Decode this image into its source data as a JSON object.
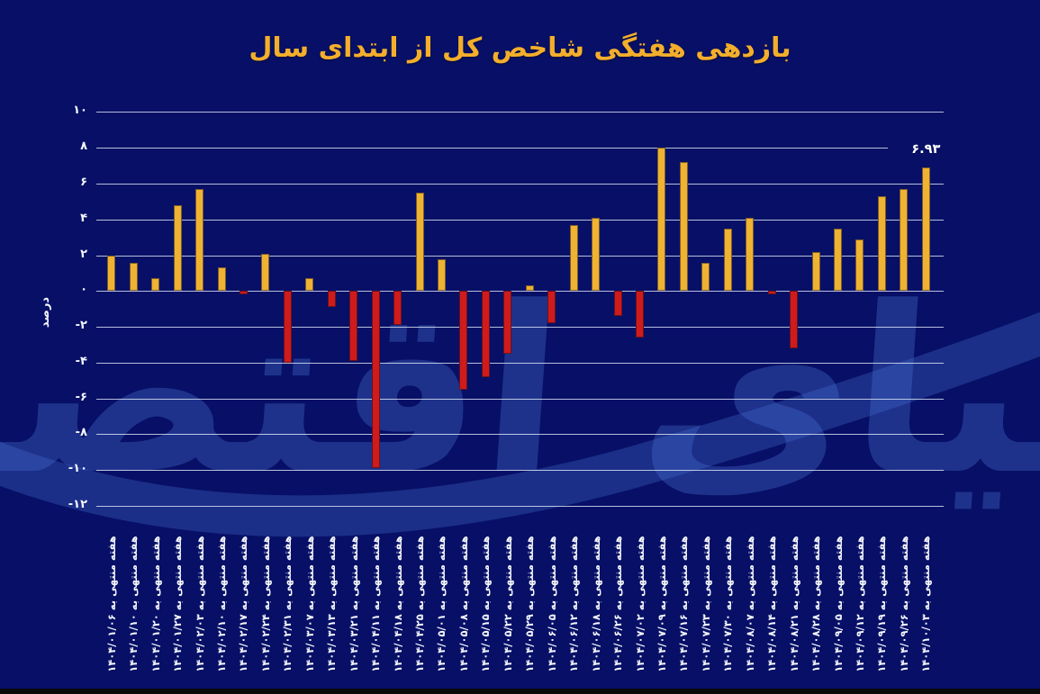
{
  "page": {
    "background_color": "#071066",
    "bottom_bar_color": "#0a0a0a"
  },
  "title": {
    "text": "بازدهی هفتگی شاخص کل از ابتدای سال",
    "color": "#f3ae2c"
  },
  "watermark": {
    "text": "دنیای اقتصاد"
  },
  "chart_data": {
    "type": "bar",
    "title": "بازدهی هفتگی شاخص کل از ابتدای سال",
    "xlabel": "",
    "ylabel": "درصد",
    "ylim": [
      -12,
      10
    ],
    "grid": true,
    "legend": "none",
    "positive_color": "#efb233",
    "negative_color": "#cf1b1b",
    "yticks": [
      {
        "label": "۱۰",
        "value": 10
      },
      {
        "label": "۸",
        "value": 8
      },
      {
        "label": "۶",
        "value": 6
      },
      {
        "label": "۴",
        "value": 4
      },
      {
        "label": "۲",
        "value": 2
      },
      {
        "label": "۰",
        "value": 0
      },
      {
        "label": "-۲",
        "value": -2
      },
      {
        "label": "-۴",
        "value": -4
      },
      {
        "label": "-۶",
        "value": -6
      },
      {
        "label": "-۸",
        "value": -8
      },
      {
        "label": "-۱۰",
        "value": -10
      },
      {
        "label": "-۱۲",
        "value": -12
      }
    ],
    "categories": [
      "هفته منتهی به ۱۴۰۴/۰۱/۰۶",
      "هفته منتهی به ۱۴۰۴/۰۱/۱۰",
      "هفته منتهی به ۱۴۰۴/۰۱/۲۰",
      "هفته منتهی به ۱۴۰۴/۰۱/۲۷",
      "هفته منتهی به ۱۴۰۴/۰۲/۰۳",
      "هفته منتهی به ۱۴۰۴/۰۲/۱۰",
      "هفته منتهی به ۱۴۰۴/۰۲/۱۷",
      "هفته منتهی به ۱۴۰۴/۰۲/۲۴",
      "هفته منتهی به ۱۴۰۴/۰۲/۳۱",
      "هفته منتهی به ۱۴۰۴/۰۳/۰۷",
      "هفته منتهی به ۱۴۰۴/۰۳/۱۳",
      "هفته منتهی به ۱۴۰۴/۰۳/۲۱",
      "هفته منتهی به ۱۴۰۴/۰۴/۱۱",
      "هفته منتهی به ۱۴۰۴/۰۴/۱۸",
      "هفته منتهی به ۱۴۰۴/۰۴/۲۵",
      "هفته منتهی به ۱۴۰۴/۰۵/۰۱",
      "هفته منتهی به ۱۴۰۴/۰۵/۰۸",
      "هفته منتهی به ۱۴۰۴/۰۵/۱۵",
      "هفته منتهی به ۱۴۰۴/۰۵/۲۲",
      "هفته منتهی به ۱۴۰۴/۰۵/۲۹",
      "هفته منتهی به ۱۴۰۴/۰۶/۰۵",
      "هفته منتهی به ۱۴۰۴/۰۶/۱۲",
      "هفته منتهی به ۱۴۰۴/۰۶/۱۸",
      "هفته منتهی به ۱۴۰۴/۰۶/۲۶",
      "هفته منتهی به ۱۴۰۴/۰۷/۰۲",
      "هفته منتهی به ۱۴۰۴/۰۷/۰۹",
      "هفته منتهی به ۱۴۰۴/۰۷/۱۶",
      "هفته منتهی به ۱۴۰۴/۰۷/۲۳",
      "هفته منتهی به ۱۴۰۴/۰۷/۳۰",
      "هفته منتهی به ۱۴۰۴/۰۸/۰۷",
      "هفته منتهی به ۱۴۰۴/۰۸/۱۴",
      "هفته منتهی به ۱۴۰۴/۰۸/۲۱",
      "هفته منتهی به ۱۴۰۴/۰۸/۲۸",
      "هفته منتهی به ۱۴۰۴/۰۹/۰۵",
      "هفته منتهی به ۱۴۰۴/۰۹/۱۲",
      "هفته منتهی به ۱۴۰۴/۰۹/۱۹",
      "هفته منتهی به ۱۴۰۴/۰۹/۲۶",
      "هفته منتهی به ۱۴۰۴/۱۰/۰۳"
    ],
    "values": [
      2.0,
      1.6,
      0.7,
      4.8,
      5.7,
      1.3,
      -0.2,
      2.1,
      -4.0,
      0.7,
      -0.9,
      -3.9,
      -9.9,
      -1.9,
      5.5,
      1.8,
      -5.5,
      -4.8,
      -3.5,
      0.3,
      -1.8,
      3.7,
      4.1,
      -1.4,
      -2.6,
      8.0,
      7.2,
      1.6,
      3.5,
      4.1,
      -0.2,
      -3.2,
      2.2,
      3.5,
      2.9,
      5.3,
      5.7,
      6.93
    ],
    "annotation": {
      "text": "۶.۹۳",
      "bar_index": 37,
      "value": 6.93
    }
  }
}
